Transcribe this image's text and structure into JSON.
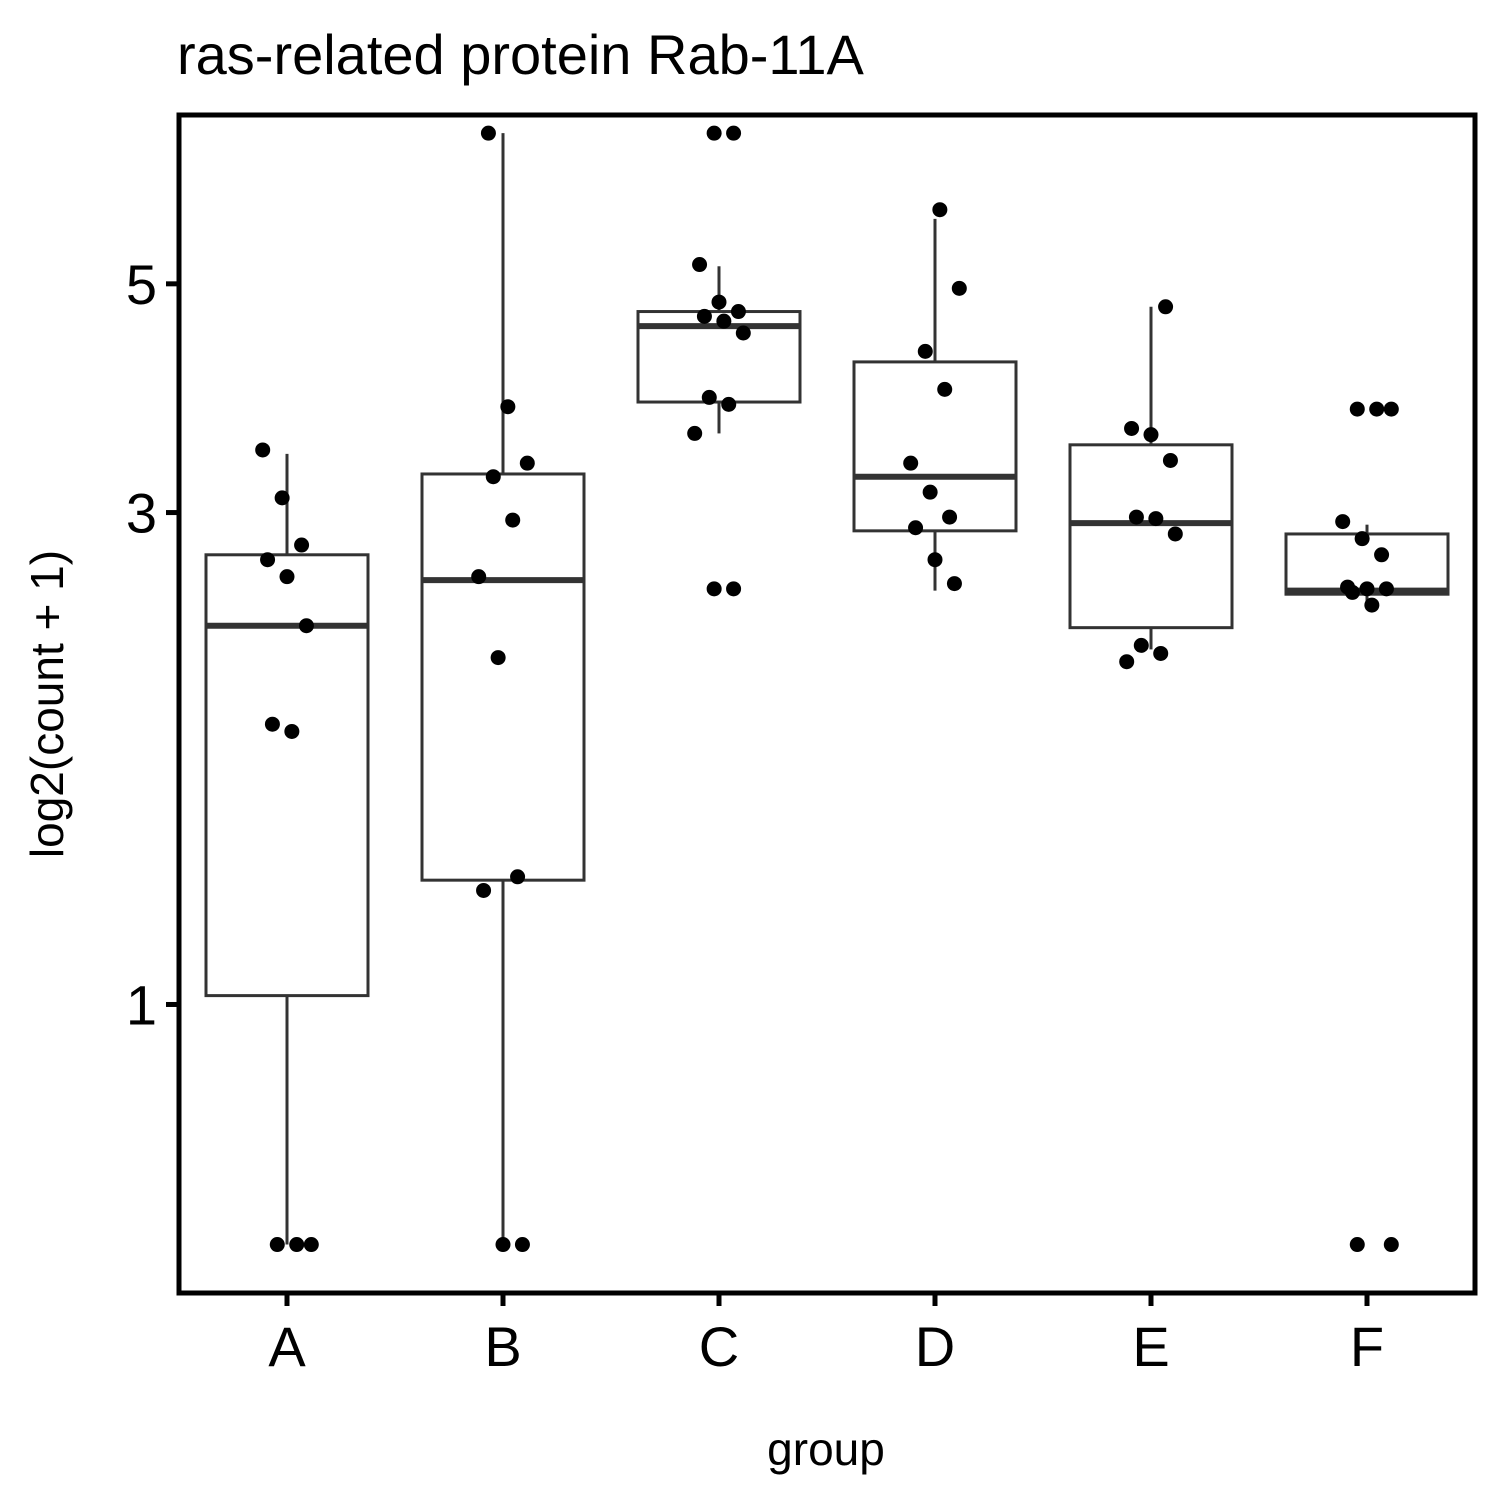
{
  "chart_data": {
    "type": "box",
    "title": "ras-related protein Rab-11A",
    "xlabel": "group",
    "ylabel": "log2(count + 1)",
    "y_scale": "log",
    "ylim": [
      0.525,
      7.29
    ],
    "y_ticks": [
      1,
      3,
      5
    ],
    "y_tick_labels": [
      "1",
      "3",
      "5"
    ],
    "categories": [
      "A",
      "B",
      "C",
      "D",
      "E",
      "F"
    ],
    "boxes": [
      {
        "group": "A",
        "whisker_low": 0.585,
        "q1": 1.02,
        "median": 2.33,
        "q3": 2.73,
        "whisker_high": 3.42
      },
      {
        "group": "B",
        "whisker_low": 0.585,
        "q1": 1.32,
        "median": 2.58,
        "q3": 3.27,
        "whisker_high": 7.0
      },
      {
        "group": "C",
        "whisker_low": 3.58,
        "q1": 3.84,
        "median": 4.55,
        "q3": 4.7,
        "whisker_high": 5.2
      },
      {
        "group": "D",
        "whisker_low": 2.52,
        "q1": 2.88,
        "median": 3.25,
        "q3": 4.2,
        "whisker_high": 5.78
      },
      {
        "group": "E",
        "whisker_low": 2.21,
        "q1": 2.32,
        "median": 2.93,
        "q3": 3.49,
        "whisker_high": 4.75
      },
      {
        "group": "F",
        "whisker_low": 2.43,
        "q1": 2.5,
        "median": 2.52,
        "q3": 2.86,
        "whisker_high": 2.92
      }
    ],
    "points": [
      {
        "group": "A",
        "values": [
          3.45,
          3.1,
          2.79,
          2.7,
          2.6,
          2.33,
          1.87,
          1.84,
          0.585,
          0.585,
          0.585
        ]
      },
      {
        "group": "B",
        "values": [
          7.0,
          3.8,
          3.35,
          3.25,
          2.95,
          2.6,
          2.17,
          1.33,
          1.29,
          0.585,
          0.585
        ]
      },
      {
        "group": "C",
        "values": [
          7.0,
          7.0,
          5.22,
          4.8,
          4.7,
          4.65,
          4.6,
          4.48,
          3.88,
          3.82,
          3.58,
          2.53,
          2.53
        ]
      },
      {
        "group": "D",
        "values": [
          5.9,
          4.95,
          4.3,
          3.95,
          3.35,
          3.14,
          2.97,
          2.9,
          2.7,
          2.56
        ]
      },
      {
        "group": "E",
        "values": [
          4.75,
          3.62,
          3.57,
          3.37,
          2.97,
          2.96,
          2.86,
          2.23,
          2.19,
          2.15
        ]
      },
      {
        "group": "F",
        "values": [
          3.78,
          3.78,
          3.78,
          2.94,
          2.83,
          2.73,
          2.54,
          2.53,
          2.53,
          2.51,
          2.44,
          0.585,
          0.585
        ]
      }
    ],
    "grid": false,
    "legend": "none"
  },
  "colors": {
    "box_stroke": "#333333",
    "point": "#000000",
    "background": "#ffffff"
  }
}
